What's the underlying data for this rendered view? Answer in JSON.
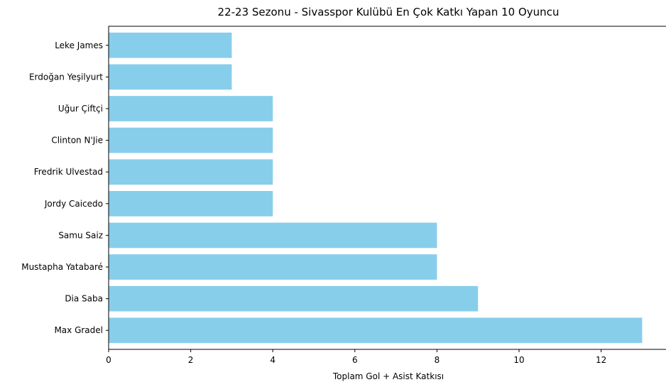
{
  "chart_data": {
    "type": "bar",
    "orientation": "horizontal",
    "title": "22-23 Sezonu - Sivasspor Kulübü En Çok Katkı Yapan 10 Oyuncu",
    "xlabel": "Toplam Gol + Asist Katkısı",
    "ylabel": "",
    "categories": [
      "Max Gradel",
      "Dia Saba",
      "Mustapha Yatabaré",
      "Samu Saiz",
      "Jordy Caicedo",
      "Fredrik Ulvestad",
      "Clinton N'Jie",
      "Uğur Çiftçi",
      "Erdoğan Yeşilyurt",
      "Leke James"
    ],
    "values": [
      13,
      9,
      8,
      8,
      4,
      4,
      4,
      4,
      3,
      3
    ],
    "xlim": [
      0,
      13.65
    ],
    "xticks": [
      0,
      2,
      4,
      6,
      8,
      10,
      12
    ],
    "grid": false,
    "bar_color": "#87CEEB"
  }
}
